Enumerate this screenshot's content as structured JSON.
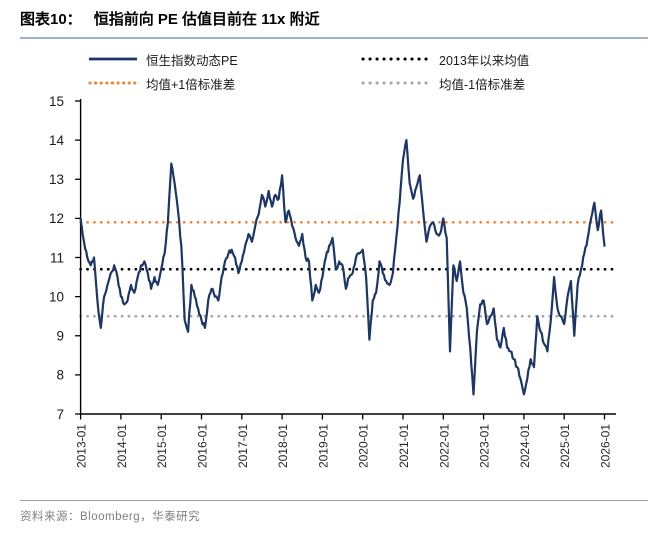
{
  "header": {
    "tag": "图表10：",
    "title": "恒指前向 PE 估值目前在 11x 附近"
  },
  "legend": [
    {
      "label": "恒生指数动态PE",
      "style": "solid",
      "color": "#1B3667"
    },
    {
      "label": "2013年以来均值",
      "style": "dotted",
      "color": "#000000"
    },
    {
      "label": "均值+1倍标准差",
      "style": "dotted",
      "color": "#EF8432"
    },
    {
      "label": "均值-1倍标准差",
      "style": "dotted",
      "color": "#A6A6A6"
    }
  ],
  "footer": {
    "source": "资料来源：Bloomberg，华泰研究"
  },
  "chart_data": {
    "type": "line",
    "title": "恒指前向PE估值目前在11x附近",
    "x_monthly_start": "2013-01",
    "x_monthly_end": "2026-01",
    "x_tick_labels": [
      "2013-01",
      "2014-01",
      "2015-01",
      "2016-01",
      "2017-01",
      "2018-01",
      "2019-01",
      "2020-01",
      "2021-01",
      "2022-01",
      "2023-01",
      "2024-01",
      "2025-01",
      "2026-01"
    ],
    "y_ticks": [
      7,
      8,
      9,
      10,
      11,
      12,
      13,
      14,
      15
    ],
    "ylim": [
      7,
      15
    ],
    "grid": false,
    "legend_position": "top",
    "series": [
      {
        "name": "恒生指数动态PE",
        "color": "#1B3667",
        "values": [
          12.0,
          11.4,
          11.0,
          10.8,
          11.0,
          9.9,
          9.2,
          10.0,
          10.3,
          10.6,
          10.8,
          10.5,
          10.0,
          9.8,
          9.9,
          10.3,
          10.1,
          10.5,
          10.8,
          10.9,
          10.6,
          10.2,
          10.5,
          10.3,
          10.7,
          11.1,
          11.9,
          13.4,
          12.9,
          12.2,
          11.3,
          9.4,
          9.1,
          10.3,
          10.0,
          9.7,
          9.4,
          9.2,
          9.9,
          10.2,
          10.0,
          9.9,
          10.5,
          10.9,
          11.1,
          11.2,
          11.0,
          10.6,
          10.9,
          11.3,
          11.6,
          11.4,
          11.8,
          12.1,
          12.6,
          12.3,
          12.7,
          12.3,
          12.6,
          12.5,
          13.1,
          11.9,
          12.2,
          11.8,
          11.5,
          11.3,
          11.6,
          11.0,
          10.9,
          9.9,
          10.3,
          10.1,
          10.5,
          11.0,
          11.3,
          11.5,
          10.7,
          10.9,
          10.8,
          10.2,
          10.5,
          10.6,
          11.0,
          11.1,
          11.2,
          10.5,
          8.9,
          9.9,
          10.1,
          10.9,
          10.6,
          10.4,
          10.3,
          10.6,
          11.5,
          12.4,
          13.5,
          14.0,
          12.9,
          12.5,
          12.8,
          13.1,
          12.2,
          11.4,
          11.8,
          11.9,
          11.6,
          11.6,
          12.0,
          11.5,
          8.6,
          10.8,
          10.4,
          10.9,
          10.1,
          9.7,
          8.7,
          7.5,
          9.1,
          9.8,
          9.9,
          9.3,
          9.5,
          9.7,
          8.9,
          8.7,
          9.2,
          8.7,
          8.6,
          8.4,
          8.2,
          7.9,
          7.5,
          7.9,
          8.4,
          8.2,
          9.5,
          9.1,
          8.8,
          8.6,
          9.4,
          10.5,
          9.7,
          9.5,
          9.3,
          10.0,
          10.4,
          9.0,
          10.3,
          10.7,
          11.1,
          11.5,
          12.0,
          12.4,
          11.7,
          12.2,
          11.3
        ]
      }
    ],
    "reference_lines": [
      {
        "name": "2013年以来均值",
        "value": 10.7,
        "color": "#000000"
      },
      {
        "name": "均值+1倍标准差",
        "value": 11.9,
        "color": "#EF8432"
      },
      {
        "name": "均值-1倍标准差",
        "value": 9.5,
        "color": "#A6A6A6"
      }
    ]
  }
}
